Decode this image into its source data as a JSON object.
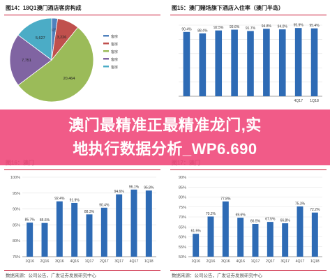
{
  "colors": {
    "bar": "#2e6bb5",
    "rule": "#c8102e",
    "banner": "#f04f7f",
    "grid": "#e2e2e2",
    "pie": [
      "#4f81bd",
      "#c0504d",
      "#9bbb59",
      "#8064a2",
      "#4bacc6"
    ]
  },
  "banner": {
    "line1": "澳门最精准正最精准龙门,实",
    "line2": "地执行数据分析_WP6.690"
  },
  "chart_data": [
    {
      "type": "pie",
      "title": "图14：18Q1澳门酒店客房构成",
      "values": [
        873,
        3226,
        20464,
        7751,
        5627
      ],
      "labels": [
        "873",
        "3,226",
        "20,464",
        "7,751",
        "5,627"
      ],
      "legend": [
        "客房",
        "客房",
        "客房",
        "客房",
        "客房"
      ],
      "legend_position": "right",
      "footer": ""
    },
    {
      "type": "bar",
      "title": "图15：澳门赌场旗下酒店入住率（澳门半岛）",
      "categories": [
        "",
        "",
        "",
        "",
        "",
        "",
        "",
        "4Q17",
        "1Q18"
      ],
      "values": [
        90.4,
        88.4,
        92.5,
        93.6,
        91.7,
        94.8,
        94.0,
        95.9,
        95.4
      ],
      "labels": [
        "90.4%",
        "88.4%",
        "92.5%",
        "93.6%",
        "91.7%",
        "94.8%",
        "94.0%",
        "95.9%",
        "95.4%"
      ],
      "ylim": [
        0,
        100
      ],
      "ytick_labels": [],
      "grid": true,
      "footer": ""
    },
    {
      "type": "bar",
      "title": "图16：澳门",
      "categories": [
        "1Q16",
        "2Q16",
        "3Q16",
        "4Q16",
        "1Q17",
        "2Q17",
        "3Q17",
        "4Q17",
        "1Q18"
      ],
      "values": [
        85.7,
        85.6,
        92.4,
        91.9,
        88.3,
        90.4,
        94.6,
        96.1,
        95.8
      ],
      "labels": [
        "85.7%",
        "85.6%",
        "92.4%",
        "91.9%",
        "88.3%",
        "90.4%",
        "94.6%",
        "96.1%",
        "95.8%"
      ],
      "ylim": [
        75,
        100
      ],
      "ytick_labels": [
        "100%",
        "95%",
        "90%",
        "85%",
        "80%",
        "75%"
      ],
      "grid": true,
      "footer": "数据来源：公司公告，广发证券发展研究中心"
    },
    {
      "type": "bar",
      "title": "图17：澳门",
      "categories": [
        "1Q16",
        "2Q16",
        "3Q16",
        "4Q16",
        "1Q17",
        "2Q17",
        "3Q17",
        "4Q17",
        "1Q18"
      ],
      "values": [
        61.5,
        70.2,
        77.8,
        69.6,
        66.5,
        67.5,
        66.8,
        75.3,
        72.2
      ],
      "labels": [
        "61.5%",
        "70.2%",
        "77.8%",
        "69.6%",
        "66.5%",
        "67.5%",
        "66.8%",
        "75.3%",
        "72.2%"
      ],
      "ylim": [
        50,
        90
      ],
      "ytick_labels": [
        "90%",
        "85%",
        "80%",
        "75%",
        "70%",
        "65%",
        "60%",
        "55%",
        "50%"
      ],
      "grid": true,
      "footer": "数据来源：公司公告，广发证券发展研究中心"
    }
  ]
}
